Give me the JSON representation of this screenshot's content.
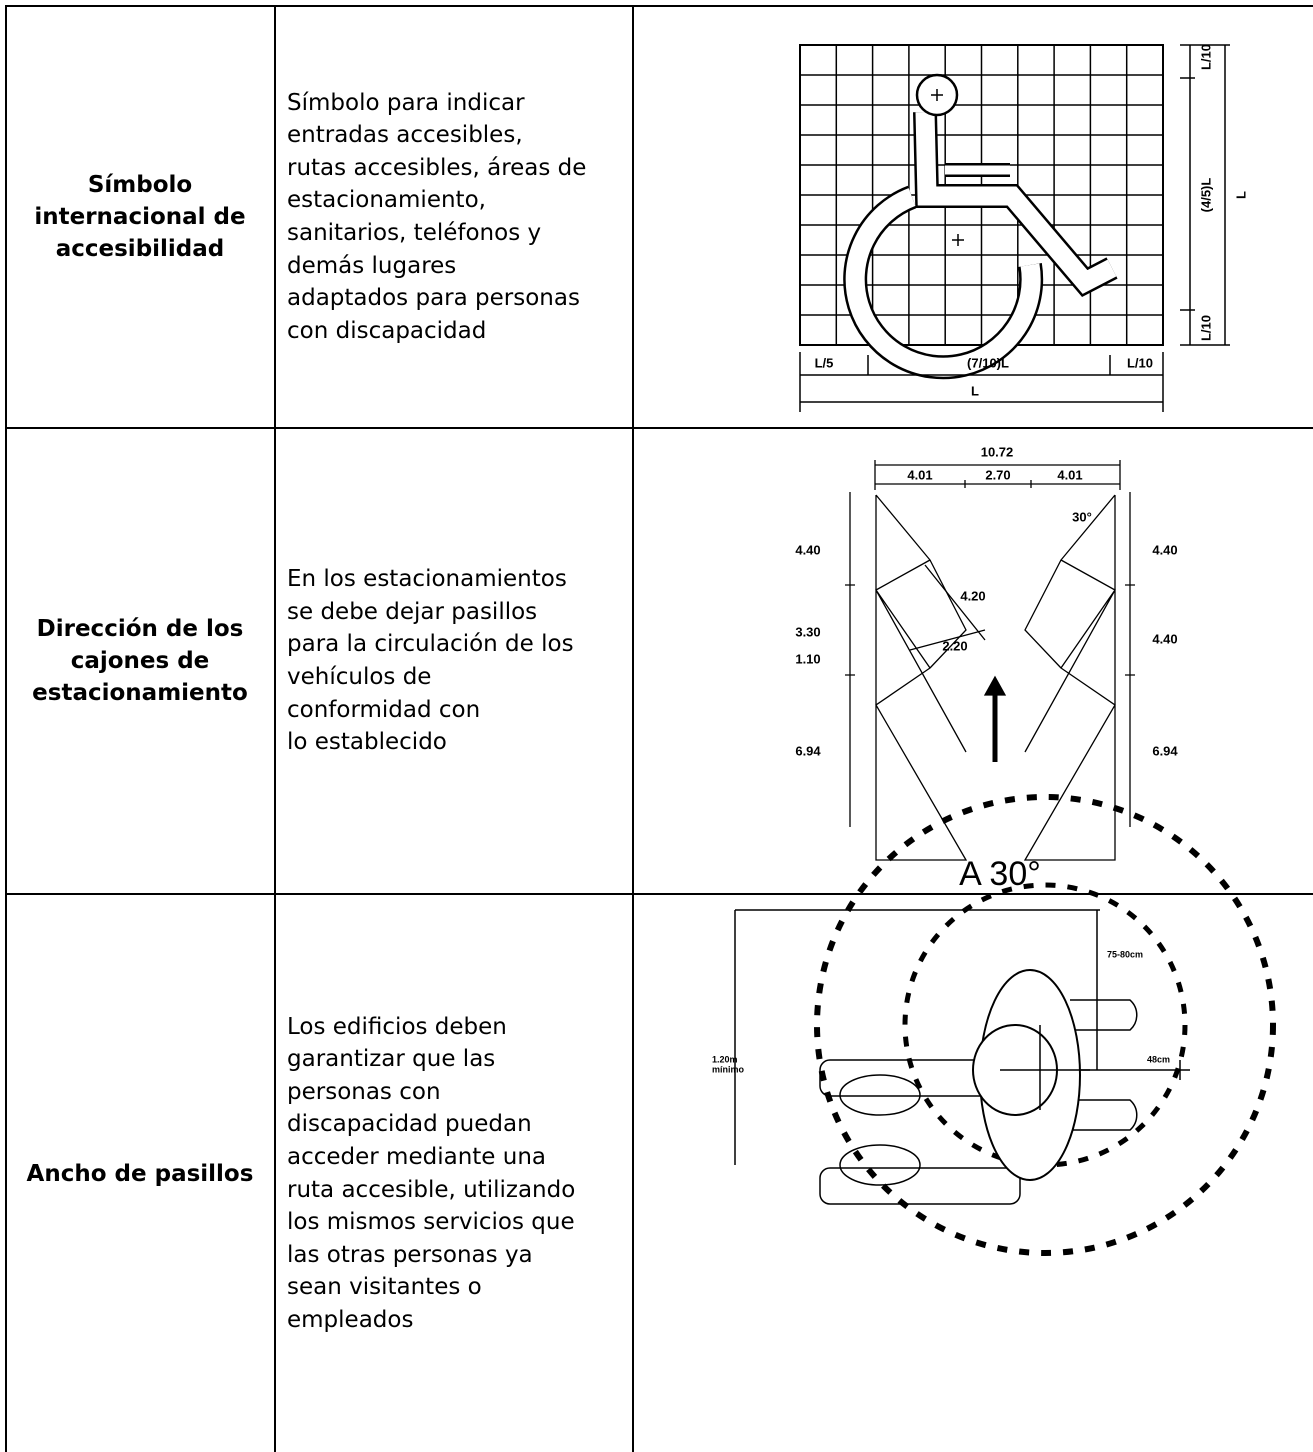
{
  "table": {
    "rows": [
      {
        "title": [
          "Símbolo",
          "internacional de",
          "accesibilidad"
        ],
        "description": [
          "Símbolo para indicar",
          "entradas accesibles,",
          "rutas accesibles, áreas de",
          "estacionamiento,",
          "sanitarios, teléfonos y",
          "demás lugares",
          "adaptados para personas",
          "con discapacidad"
        ],
        "figure": {
          "labels": [
            "L/10",
            "(4/5)L",
            "L",
            "L/10",
            "L/5",
            "(7/10)L",
            "L/10",
            "L"
          ]
        }
      },
      {
        "title": [
          "Dirección de los",
          "cajones de",
          "estacionamiento"
        ],
        "description": [
          "En los estacionamientos",
          "se debe dejar pasillos",
          "para la circulación de los",
          "vehículos de",
          "conformidad con",
          "lo establecido"
        ],
        "figure": {
          "labels": [
            "10.72",
            "4.01",
            "2.70",
            "4.01",
            "30°",
            "4.40",
            "3.30",
            "1.10",
            "6.94",
            "4.40",
            "4.40",
            "6.94",
            "4.20",
            "2.20",
            "A 30°"
          ]
        }
      },
      {
        "title": [
          "Ancho de pasillos"
        ],
        "description": [
          "Los edificios deben",
          "garantizar que las",
          "personas con",
          "discapacidad puedan",
          "acceder mediante una",
          "ruta accesible, utilizando",
          "los mismos servicios que",
          "las otras personas ya",
          "sean visitantes o",
          "empleados"
        ],
        "figure": {
          "labels": [
            "75-80cm",
            "48cm",
            "1.20m",
            "mínimo"
          ]
        }
      }
    ]
  }
}
